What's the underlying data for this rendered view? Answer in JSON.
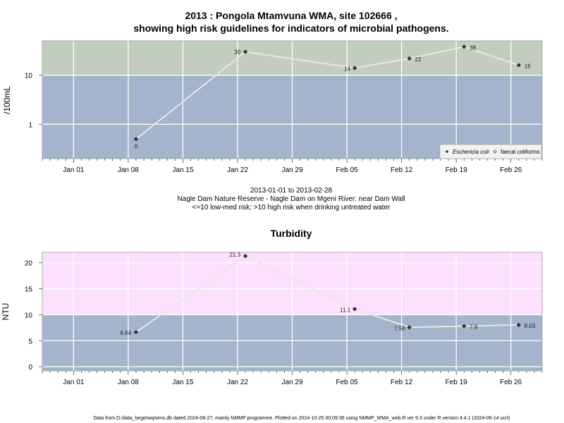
{
  "colors": {
    "high_risk_band": "#c2cdbf",
    "low_risk_band": "#a3b4cc",
    "turb_high_band": "#fde0fd",
    "turb_low_band": "#a3b4cc",
    "line": "#e6e6e6",
    "marker": "#333333",
    "grid": "#ffffff"
  },
  "header": {
    "title_line1": "2013 : Pongola Mtamvuna WMA, site 102666 ,",
    "title_line2": "showing high risk guidelines for indicators of microbial pathogens."
  },
  "caption": {
    "line1": "2013-01-01 to 2013-02-28",
    "line2": "Nagle Dam Nature Reserve - Nagle Dam on Mgeni River: near Dam Wall",
    "line3": "<=10 low-med risk; >10 high risk when drinking untreated water"
  },
  "footer": {
    "text": "Data from D:/data_large/wq/wms.db dated 2024-08-27, mainly NMMP programme. Plotted on 2024-10-25 00:09:36 using NMMP_WMA_web.R ver 9.3 under R version 4.4.1 (2024-06-14 ucrt)"
  },
  "chart_data": [
    {
      "type": "line",
      "title": "2013 : Pongola Mtamvuna WMA, site 102666 , showing high risk guidelines for indicators of microbial pathogens.",
      "ylabel": "/100mL",
      "yscale": "log",
      "ylim": [
        0.2,
        50
      ],
      "xlim": [
        "2012-12-28",
        "2013-03-02"
      ],
      "x_ticks": [
        "Jan 01",
        "Jan 08",
        "Jan 15",
        "Jan 22",
        "Jan 29",
        "Feb 05",
        "Feb 12",
        "Feb 19",
        "Feb 26"
      ],
      "y_ticks": [
        "1",
        "10"
      ],
      "threshold": 10,
      "grid": true,
      "legend_position": "bottom-right",
      "legend": [
        "Eschericia coli",
        "faecal coliforms"
      ],
      "series": [
        {
          "name": "Eschericia coli",
          "x": [
            "2013-01-09",
            "2013-01-23",
            "2013-02-06",
            "2013-02-13",
            "2013-02-20",
            "2013-02-27"
          ],
          "values": [
            0.5,
            30,
            14,
            22,
            38,
            16
          ],
          "labels": [
            "0",
            "30",
            "14",
            "22",
            "38",
            "16"
          ]
        }
      ]
    },
    {
      "type": "line",
      "title": "Turbidity",
      "ylabel": "NTU",
      "ylim": [
        -0.8,
        22
      ],
      "xlim": [
        "2012-12-28",
        "2013-03-02"
      ],
      "x_ticks": [
        "Jan 01",
        "Jan 08",
        "Jan 15",
        "Jan 22",
        "Jan 29",
        "Feb 05",
        "Feb 12",
        "Feb 19",
        "Feb 26"
      ],
      "y_ticks": [
        "0",
        "5",
        "10",
        "15",
        "20"
      ],
      "threshold": 10,
      "grid": true,
      "series": [
        {
          "x": [
            "2013-01-09",
            "2013-01-23",
            "2013-02-06",
            "2013-02-13",
            "2013-02-20",
            "2013-02-27"
          ],
          "values": [
            6.64,
            21.3,
            11.1,
            7.58,
            7.8,
            8.03
          ],
          "labels": [
            "6.64",
            "21.3",
            "11.1",
            "7.58",
            "7.8",
            "8.03"
          ]
        }
      ]
    }
  ]
}
